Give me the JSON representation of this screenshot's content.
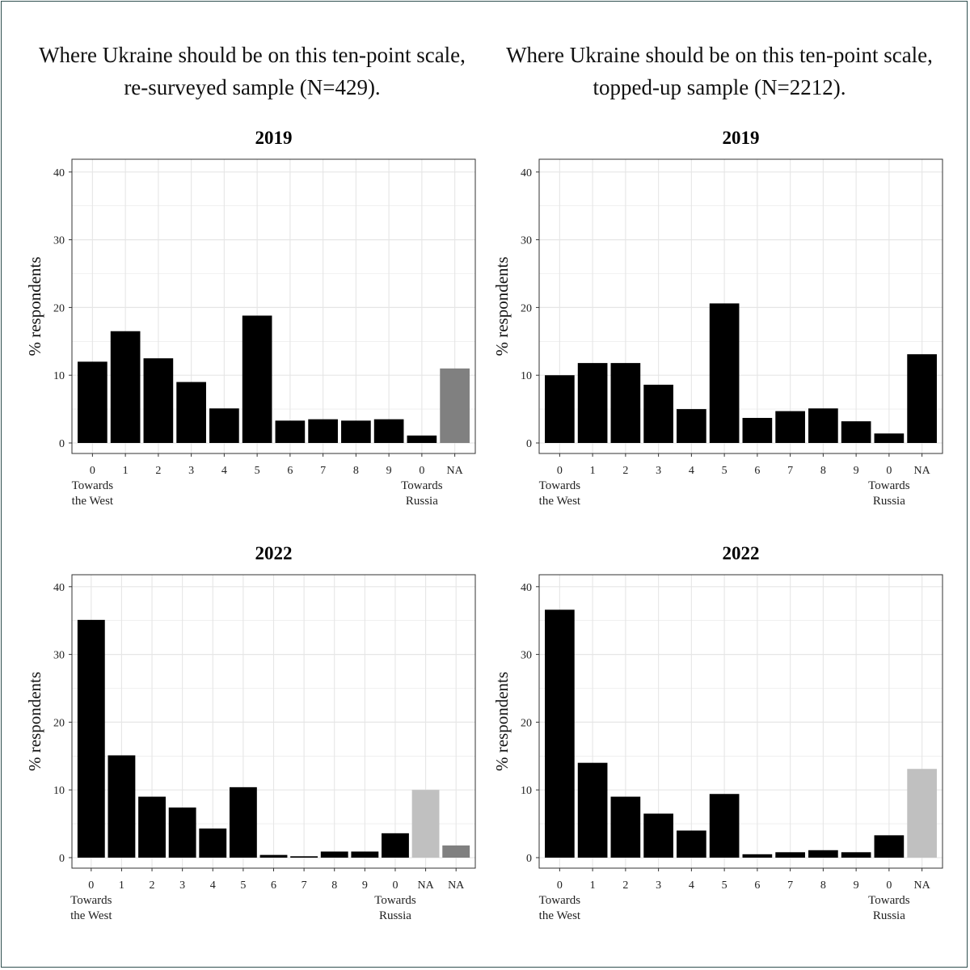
{
  "columns": [
    {
      "title_line1": "Where Ukraine should be on this ten-point scale,",
      "title_line2": "re-surveyed sample (N=429)."
    },
    {
      "title_line1": "Where Ukraine should be on this ten-point scale,",
      "title_line2": "topped-up sample (N=2212)."
    }
  ],
  "colors": {
    "bar": "#000000",
    "na_dark": "#808080",
    "na_light": "#c0c0c0",
    "grid": "#e6e6e6",
    "axis": "#333333"
  },
  "chart_data": [
    {
      "type": "bar",
      "title": "2019",
      "ylabel": "% respondents",
      "ylim": [
        0,
        40
      ],
      "yticks": [
        "0",
        "10",
        "20",
        "30",
        "40"
      ],
      "categories": [
        "0",
        "1",
        "2",
        "3",
        "4",
        "5",
        "6",
        "7",
        "8",
        "9",
        "0",
        "NA"
      ],
      "values": [
        12,
        16.5,
        12.5,
        9,
        5.1,
        18.8,
        3.3,
        3.5,
        3.3,
        3.5,
        1.1,
        11
      ],
      "bar_fill": [
        "bar",
        "bar",
        "bar",
        "bar",
        "bar",
        "bar",
        "bar",
        "bar",
        "bar",
        "bar",
        "bar",
        "na_dark"
      ],
      "left_label_line1": "Towards",
      "left_label_line2": "the West",
      "right_label_line1": "Towards",
      "right_label_line2": "Russia"
    },
    {
      "type": "bar",
      "title": "2019",
      "ylabel": "% respondents",
      "ylim": [
        0,
        40
      ],
      "yticks": [
        "0",
        "10",
        "20",
        "30",
        "40"
      ],
      "categories": [
        "0",
        "1",
        "2",
        "3",
        "4",
        "5",
        "6",
        "7",
        "8",
        "9",
        "0",
        "NA"
      ],
      "values": [
        10,
        11.8,
        11.8,
        8.6,
        5,
        20.6,
        3.7,
        4.7,
        5.1,
        3.2,
        1.4,
        13.1
      ],
      "bar_fill": [
        "bar",
        "bar",
        "bar",
        "bar",
        "bar",
        "bar",
        "bar",
        "bar",
        "bar",
        "bar",
        "bar",
        "bar"
      ],
      "left_label_line1": "Towards",
      "left_label_line2": "the West",
      "right_label_line1": "Towards",
      "right_label_line2": "Russia"
    },
    {
      "type": "bar",
      "title": "2022",
      "ylabel": "% respondents",
      "ylim": [
        0,
        40
      ],
      "yticks": [
        "0",
        "10",
        "20",
        "30",
        "40"
      ],
      "categories": [
        "0",
        "1",
        "2",
        "3",
        "4",
        "5",
        "6",
        "7",
        "8",
        "9",
        "0",
        "NA",
        "NA"
      ],
      "values": [
        35.1,
        15.1,
        9,
        7.4,
        4.3,
        10.4,
        0.4,
        0.2,
        0.9,
        0.9,
        3.6,
        10,
        1.8
      ],
      "bar_fill": [
        "bar",
        "bar",
        "bar",
        "bar",
        "bar",
        "bar",
        "bar",
        "bar",
        "bar",
        "bar",
        "bar",
        "na_light",
        "na_dark"
      ],
      "left_label_line1": "Towards",
      "left_label_line2": "the West",
      "right_label_line1": "Towards",
      "right_label_line2": "Russia"
    },
    {
      "type": "bar",
      "title": "2022",
      "ylabel": "% respondents",
      "ylim": [
        0,
        40
      ],
      "yticks": [
        "0",
        "10",
        "20",
        "30",
        "40"
      ],
      "categories": [
        "0",
        "1",
        "2",
        "3",
        "4",
        "5",
        "6",
        "7",
        "8",
        "9",
        "0",
        "NA"
      ],
      "values": [
        36.6,
        14,
        9,
        6.5,
        4,
        9.4,
        0.5,
        0.8,
        1.1,
        0.8,
        3.3,
        13.1
      ],
      "bar_fill": [
        "bar",
        "bar",
        "bar",
        "bar",
        "bar",
        "bar",
        "bar",
        "bar",
        "bar",
        "bar",
        "bar",
        "na_light"
      ],
      "left_label_line1": "Towards",
      "left_label_line2": "the West",
      "right_label_line1": "Towards",
      "right_label_line2": "Russia"
    }
  ]
}
